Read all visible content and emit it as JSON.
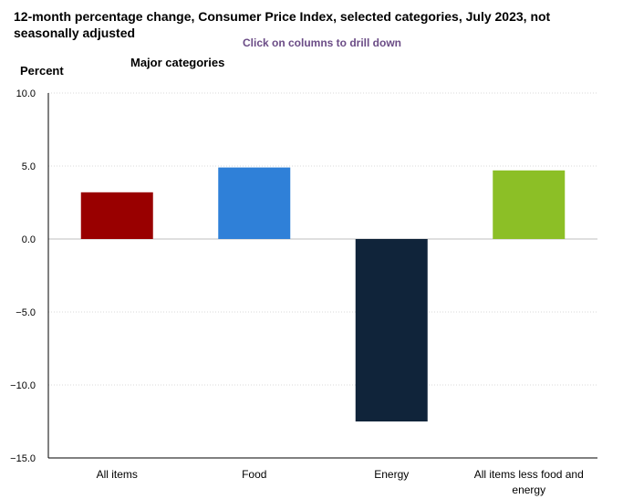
{
  "header": {
    "title": "12-month percentage change, Consumer Price Index, selected categories, July 2023, not seasonally adjusted",
    "subtitle": "Click on columns to drill down"
  },
  "chart_data": {
    "type": "bar",
    "ylabel": "Percent",
    "legend_title": "Major categories",
    "categories": [
      "All items",
      "Food",
      "Energy",
      "All items less food and energy"
    ],
    "category_lines": [
      [
        "All items"
      ],
      [
        "Food"
      ],
      [
        "Energy"
      ],
      [
        "All items less food and",
        "energy"
      ]
    ],
    "values": [
      3.2,
      4.9,
      -12.5,
      4.7
    ],
    "colors": [
      "#990000",
      "#2f80d8",
      "#10243a",
      "#8cbf26"
    ],
    "ylim": [
      -15,
      10
    ],
    "yticks": [
      10,
      5,
      0,
      -5,
      -10,
      -15
    ],
    "ytick_labels": [
      "10.0",
      "5.0",
      "0.0",
      "−5.0",
      "−10.0",
      "−15.0"
    ],
    "grid": true
  }
}
